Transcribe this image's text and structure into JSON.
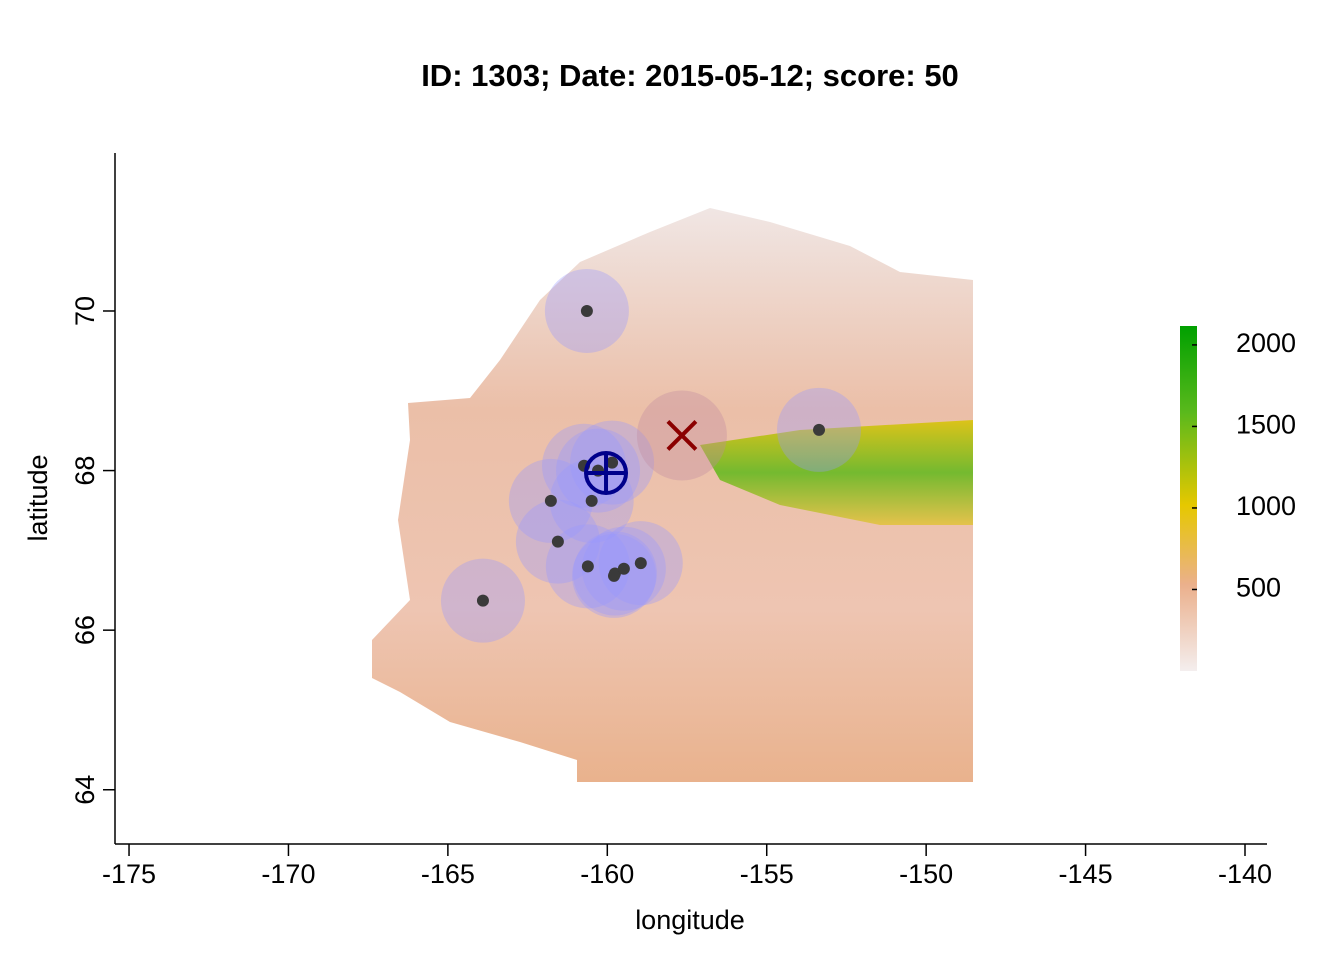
{
  "chart_data": {
    "type": "scatter",
    "title": "ID: 1303;  Date: 2015-05-12;  score: 50",
    "x_label": "longitude",
    "y_label": "latitude",
    "xlim": [
      -175.44,
      -139.31
    ],
    "ylim": [
      63.32,
      71.98
    ],
    "xticks": [
      -175,
      -170,
      -165,
      -160,
      -155,
      -150,
      -145,
      -140
    ],
    "yticks": [
      64,
      66,
      68,
      70
    ],
    "series": [
      {
        "color": "#3a3a3a",
        "marker": "dot",
        "x": [
          -160.64,
          -153.36,
          -163.9,
          -161.77,
          -161.55,
          -160.49,
          -160.73,
          -160.29,
          -159.85,
          -160.61,
          -159.76,
          -159.48,
          -158.95,
          -159.79
        ],
        "values": [
          70.0,
          68.51,
          66.37,
          67.62,
          67.11,
          67.62,
          68.06,
          68.0,
          68.1,
          66.8,
          66.71,
          66.77,
          66.84,
          66.68
        ]
      },
      {
        "color": "#00008b",
        "marker": "crosshair",
        "x": [
          -160.04
        ],
        "values": [
          67.97
        ]
      },
      {
        "color": "#8b0000",
        "marker": "x",
        "x": [
          -157.66
        ],
        "values": [
          68.44
        ]
      }
    ],
    "colorbar": {
      "clim": [
        0,
        2116
      ],
      "ticks": [
        500,
        1000,
        1500,
        2000
      ]
    }
  }
}
